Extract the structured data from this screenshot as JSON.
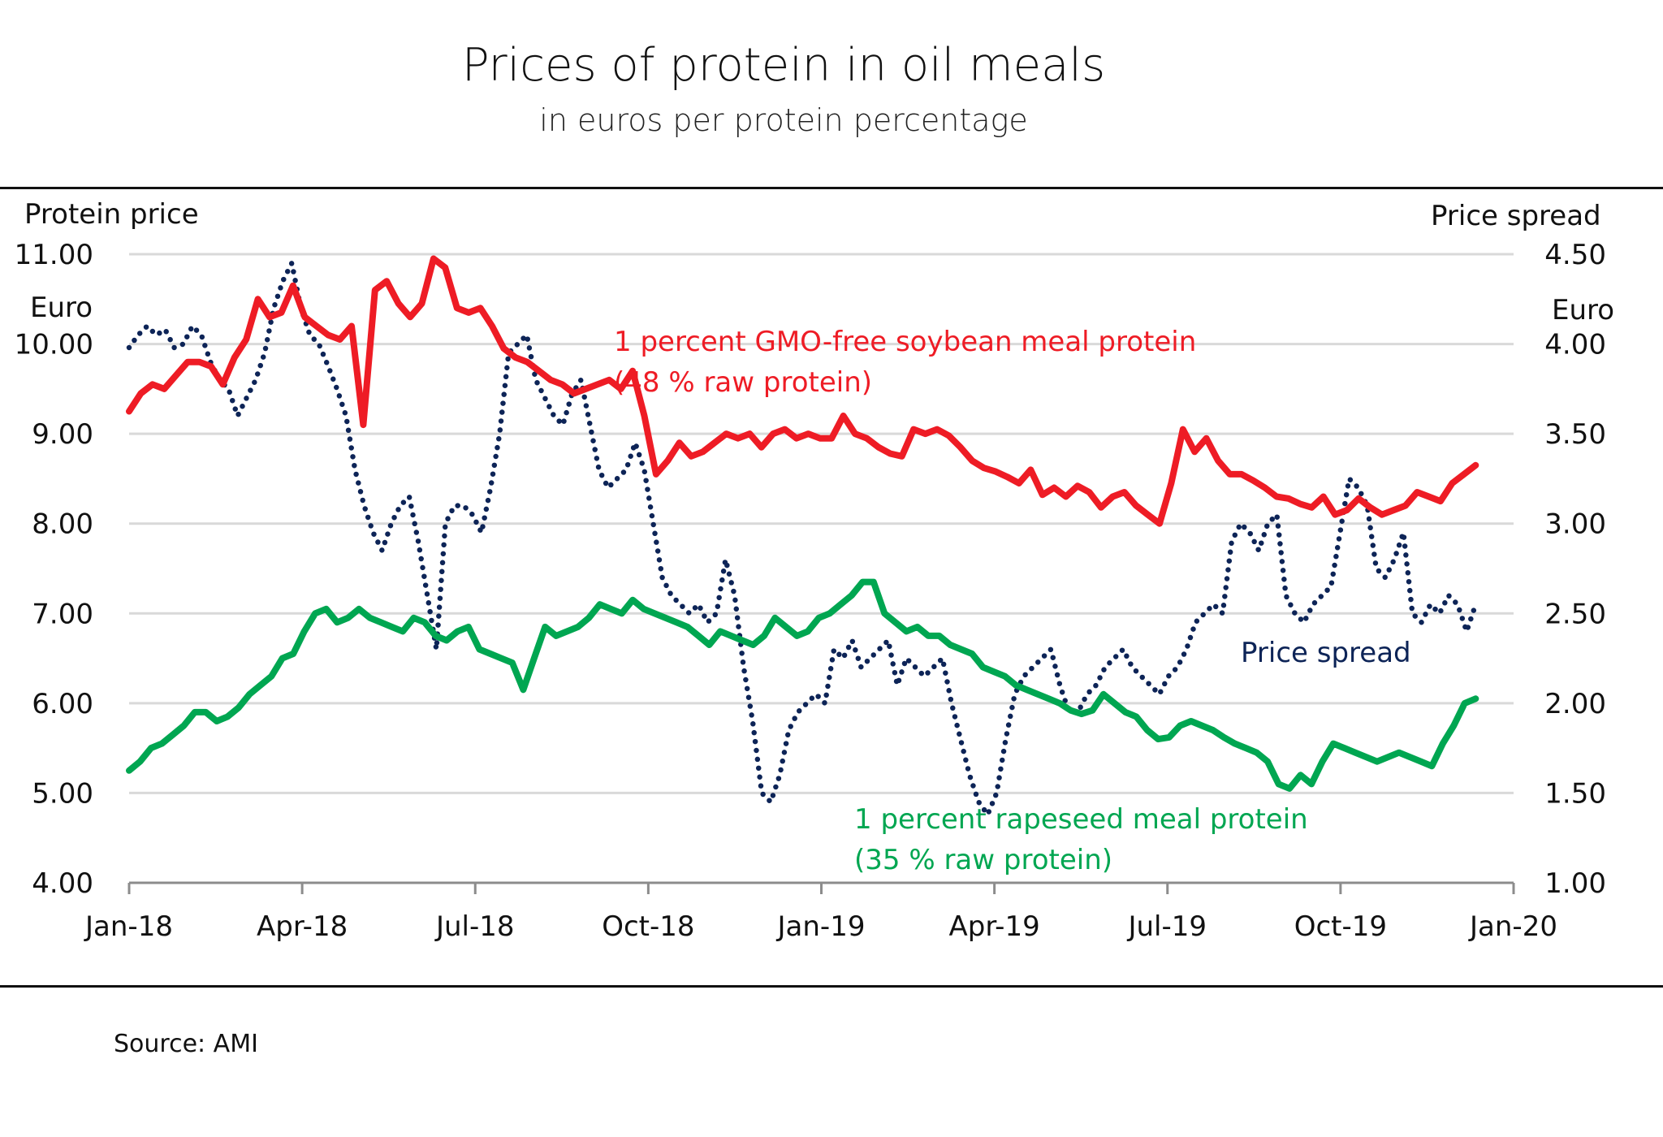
{
  "header": {
    "title": "Prices of protein in oil meals",
    "subtitle": "in euros per protein percentage"
  },
  "footer": {
    "source": "Source: AMI"
  },
  "chart_data": {
    "type": "line",
    "title": "Prices of protein in oil meals",
    "subtitle": "in euros per protein percentage",
    "left_axis": {
      "label": "Protein price",
      "unit": "Euro",
      "ylim": [
        4.0,
        11.0
      ],
      "ticks": [
        "4.00",
        "5.00",
        "6.00",
        "7.00",
        "8.00",
        "9.00",
        "10.00",
        "11.00"
      ]
    },
    "right_axis": {
      "label": "Price spread",
      "unit": "Euro",
      "ylim": [
        1.0,
        4.5
      ],
      "ticks": [
        "1.00",
        "1.50",
        "2.00",
        "2.50",
        "3.00",
        "3.50",
        "4.00",
        "4.50"
      ]
    },
    "x_axis": {
      "start": "2018-01-01",
      "end": "2020-01-01",
      "ticks": [
        "Jan-18",
        "Apr-18",
        "Jul-18",
        "Oct-18",
        "Jan-19",
        "Apr-19",
        "Jul-19",
        "Oct-19",
        "Jan-20"
      ]
    },
    "grid": true,
    "series": [
      {
        "name": "1 percent GMO-free soybean meal protein (48 % raw protein)",
        "label_line1": "1 percent GMO-free soybean meal protein",
        "label_line2": "(48 % raw protein)",
        "axis": "left",
        "style": "solid",
        "color": "#ee1c25",
        "start": "2018-01-01",
        "end": "2019-12-12",
        "values": [
          9.25,
          9.45,
          9.55,
          9.5,
          9.65,
          9.8,
          9.8,
          9.75,
          9.55,
          9.85,
          10.05,
          10.5,
          10.3,
          10.35,
          10.65,
          10.3,
          10.2,
          10.1,
          10.05,
          10.2,
          9.1,
          10.6,
          10.7,
          10.45,
          10.3,
          10.45,
          10.95,
          10.85,
          10.4,
          10.35,
          10.4,
          10.2,
          9.95,
          9.85,
          9.8,
          9.7,
          9.6,
          9.55,
          9.45,
          9.5,
          9.55,
          9.6,
          9.5,
          9.7,
          9.2,
          8.55,
          8.7,
          8.9,
          8.75,
          8.8,
          8.9,
          9.0,
          8.95,
          9.0,
          8.85,
          9.0,
          9.05,
          8.95,
          9.0,
          8.95,
          8.95,
          9.2,
          9.0,
          8.95,
          8.85,
          8.78,
          8.75,
          9.05,
          9.0,
          9.05,
          8.98,
          8.85,
          8.7,
          8.62,
          8.58,
          8.52,
          8.45,
          8.6,
          8.32,
          8.4,
          8.3,
          8.42,
          8.35,
          8.18,
          8.3,
          8.35,
          8.2,
          8.1,
          8.0,
          8.45,
          9.05,
          8.8,
          8.95,
          8.7,
          8.55,
          8.55,
          8.48,
          8.4,
          8.3,
          8.28,
          8.22,
          8.18,
          8.3,
          8.1,
          8.15,
          8.28,
          8.18,
          8.1,
          8.15,
          8.2,
          8.35,
          8.3,
          8.25,
          8.45,
          8.55,
          8.65
        ]
      },
      {
        "name": "1 percent rapeseed meal protein (35 % raw protein)",
        "label_line1": "1 percent rapeseed meal protein",
        "label_line2": "(35 % raw protein)",
        "axis": "left",
        "style": "solid",
        "color": "#00a651",
        "start": "2018-01-01",
        "end": "2019-12-12",
        "values": [
          5.25,
          5.35,
          5.5,
          5.55,
          5.65,
          5.75,
          5.9,
          5.9,
          5.8,
          5.85,
          5.95,
          6.1,
          6.2,
          6.3,
          6.5,
          6.55,
          6.8,
          7.0,
          7.05,
          6.9,
          6.95,
          7.05,
          6.95,
          6.9,
          6.85,
          6.8,
          6.95,
          6.9,
          6.75,
          6.7,
          6.8,
          6.85,
          6.6,
          6.55,
          6.5,
          6.45,
          6.15,
          6.5,
          6.85,
          6.75,
          6.8,
          6.85,
          6.95,
          7.1,
          7.05,
          7.0,
          7.15,
          7.05,
          7.0,
          6.95,
          6.9,
          6.85,
          6.75,
          6.65,
          6.8,
          6.75,
          6.7,
          6.65,
          6.75,
          6.95,
          6.85,
          6.75,
          6.8,
          6.95,
          7.0,
          7.1,
          7.2,
          7.35,
          7.35,
          7.0,
          6.9,
          6.8,
          6.85,
          6.75,
          6.75,
          6.65,
          6.6,
          6.55,
          6.4,
          6.35,
          6.3,
          6.2,
          6.15,
          6.1,
          6.05,
          6.0,
          5.92,
          5.88,
          5.92,
          6.1,
          6.0,
          5.9,
          5.85,
          5.7,
          5.6,
          5.62,
          5.75,
          5.8,
          5.75,
          5.7,
          5.62,
          5.55,
          5.5,
          5.45,
          5.35,
          5.1,
          5.05,
          5.2,
          5.1,
          5.35,
          5.55,
          5.5,
          5.45,
          5.4,
          5.35,
          5.4,
          5.45,
          5.4,
          5.35,
          5.3,
          5.55,
          5.75,
          6.0,
          6.05
        ]
      },
      {
        "name": "Price spread",
        "label_line1": "Price spread",
        "axis": "right",
        "style": "dotted",
        "color": "#0d2457",
        "start": "2018-01-01",
        "end": "2019-12-12",
        "values": [
          3.98,
          4.05,
          4.1,
          4.05,
          4.08,
          3.98,
          4.0,
          4.1,
          4.05,
          3.9,
          3.8,
          3.75,
          3.6,
          3.7,
          3.8,
          3.95,
          4.2,
          4.35,
          4.45,
          4.2,
          4.05,
          4.0,
          3.88,
          3.75,
          3.6,
          3.3,
          3.1,
          2.95,
          2.85,
          3.0,
          3.1,
          3.15,
          2.9,
          2.6,
          2.3,
          3.0,
          3.1,
          3.1,
          3.05,
          2.95,
          3.2,
          3.5,
          3.95,
          4.0,
          4.05,
          3.8,
          3.7,
          3.6,
          3.55,
          3.72,
          3.8,
          3.55,
          3.3,
          3.2,
          3.25,
          3.3,
          3.45,
          3.3,
          3.0,
          2.7,
          2.6,
          2.55,
          2.5,
          2.55,
          2.45,
          2.5,
          2.8,
          2.6,
          2.2,
          1.9,
          1.5,
          1.45,
          1.6,
          1.85,
          1.95,
          2.0,
          2.05,
          2.0,
          2.3,
          2.25,
          2.35,
          2.2,
          2.25,
          2.3,
          2.35,
          2.1,
          2.25,
          2.2,
          2.15,
          2.2,
          2.25,
          2.0,
          1.8,
          1.6,
          1.45,
          1.38,
          1.5,
          1.8,
          2.05,
          2.15,
          2.2,
          2.25,
          2.3,
          2.1,
          1.95,
          1.95,
          2.05,
          2.1,
          2.2,
          2.25,
          2.3,
          2.2,
          2.15,
          2.1,
          2.05,
          2.15,
          2.2,
          2.3,
          2.45,
          2.5,
          2.55,
          2.5,
          2.9,
          3.0,
          2.95,
          2.85,
          3.0,
          3.05,
          2.6,
          2.5,
          2.45,
          2.55,
          2.6,
          2.65,
          2.95,
          3.25,
          3.2,
          3.1,
          2.75,
          2.7,
          2.8,
          2.95,
          2.5,
          2.45,
          2.55,
          2.5,
          2.6,
          2.55,
          2.4,
          2.55
        ]
      }
    ]
  }
}
